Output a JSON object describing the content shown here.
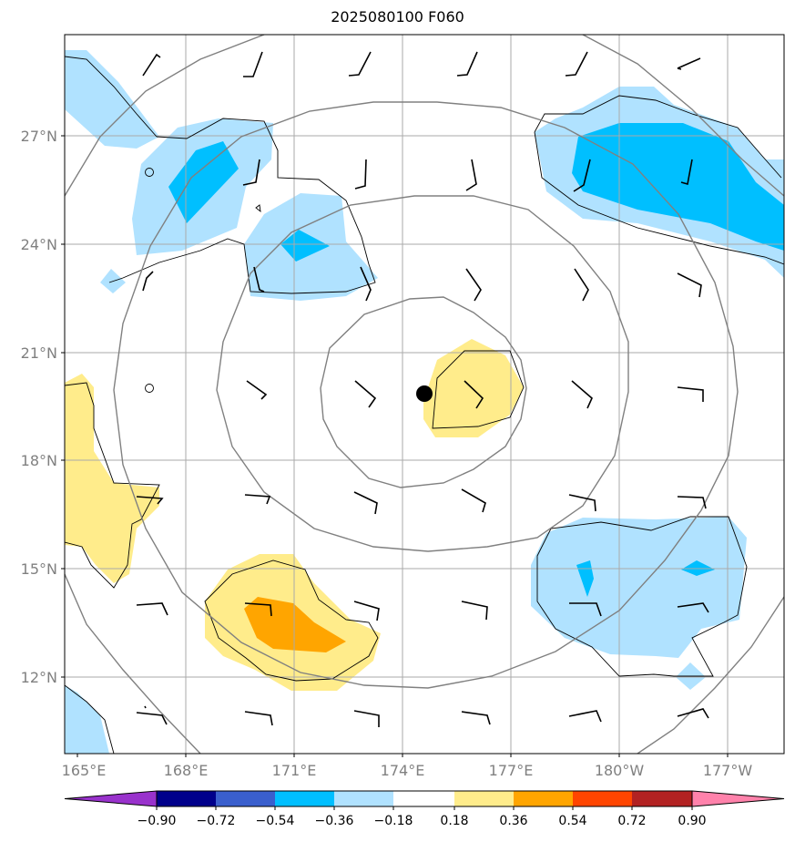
{
  "title": "2025080100 F060",
  "map": {
    "y_labels": [
      "27°N",
      "24°N",
      "21°N",
      "18°N",
      "15°N",
      "12°N"
    ],
    "x_labels": [
      "165°E",
      "168°E",
      "171°E",
      "174°E",
      "177°E",
      "180°W",
      "177°W"
    ],
    "grid_color": "#aaaaaa",
    "range_ring_color": "#808080",
    "center_marker": "filled-black-dot"
  },
  "colorbar": {
    "ticks": [
      "−0.90",
      "−0.72",
      "−0.54",
      "−0.36",
      "−0.18",
      "0.18",
      "0.36",
      "0.54",
      "0.72",
      "0.90"
    ],
    "colors": [
      "#9932cc",
      "#00008b",
      "#3a5fcd",
      "#00bfff",
      "#b0e2ff",
      "#ffffff",
      "#ffec8b",
      "#ffa500",
      "#ff4500",
      "#b22222",
      "#ff82ab"
    ]
  }
}
